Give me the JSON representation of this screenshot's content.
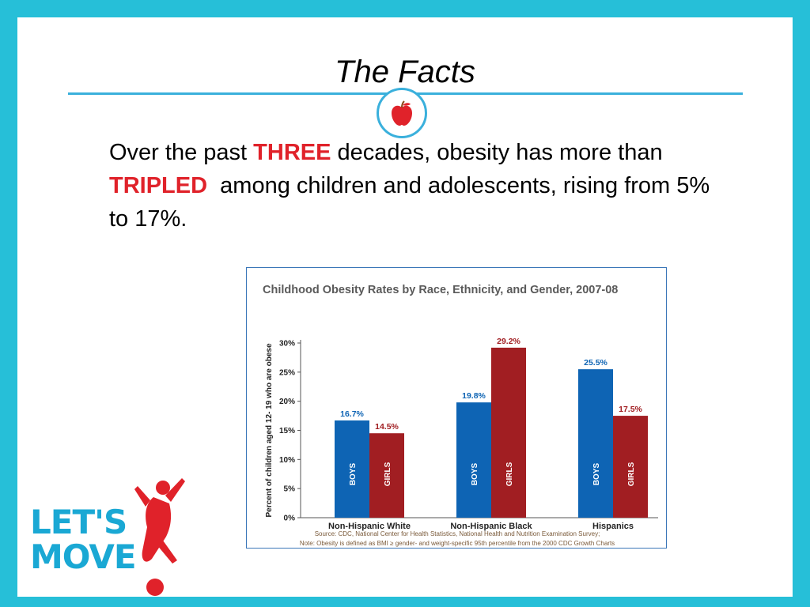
{
  "slide": {
    "title": "The Facts",
    "body": {
      "p1": "Over the past ",
      "h1": "THREE",
      "p2": " decades, obesity has more than ",
      "h2": "TRIPLED",
      "p3": "  among children and adolescents, rising from 5% to 17%."
    },
    "logo": {
      "line1": "LET'S",
      "line2": "MOVE"
    }
  },
  "colors": {
    "frame": "#26bfd8",
    "accent": "#3ab0dc",
    "highlight": "#e0222a",
    "boys": "#0e64b4",
    "girls": "#a11e22",
    "chart_title": "#5a5a5a",
    "logo": "#1aa8d4"
  },
  "chart_data": {
    "type": "bar",
    "title": "Childhood Obesity Rates by Race, Ethnicity, and Gender, 2007-08",
    "ylabel": "Percent of children aged 12- 19 who are obese",
    "ylim": [
      0,
      30
    ],
    "yticks": [
      0,
      5,
      10,
      15,
      20,
      25,
      30
    ],
    "ytick_labels": [
      "0%",
      "5%",
      "10%",
      "15%",
      "20%",
      "25%",
      "30%"
    ],
    "categories": [
      "Non-Hispanic White",
      "Non-Hispanic Black",
      "Hispanics"
    ],
    "series": [
      {
        "name": "BOYS",
        "values": [
          16.7,
          19.8,
          25.5
        ],
        "labels": [
          "16.7%",
          "19.8%",
          "25.5%"
        ]
      },
      {
        "name": "GIRLS",
        "values": [
          14.5,
          29.2,
          17.5
        ],
        "labels": [
          "14.5%",
          "29.2%",
          "17.5%"
        ]
      }
    ],
    "source": "Source: CDC, National Center for Health Statistics, National Health and Nutrition Examination Survey;",
    "note": "Note: Obesity is defined as BMI ≥ gender- and weight-specific 95th percentile from the 2000 CDC Growth Charts",
    "grid": false,
    "legend": "none"
  }
}
